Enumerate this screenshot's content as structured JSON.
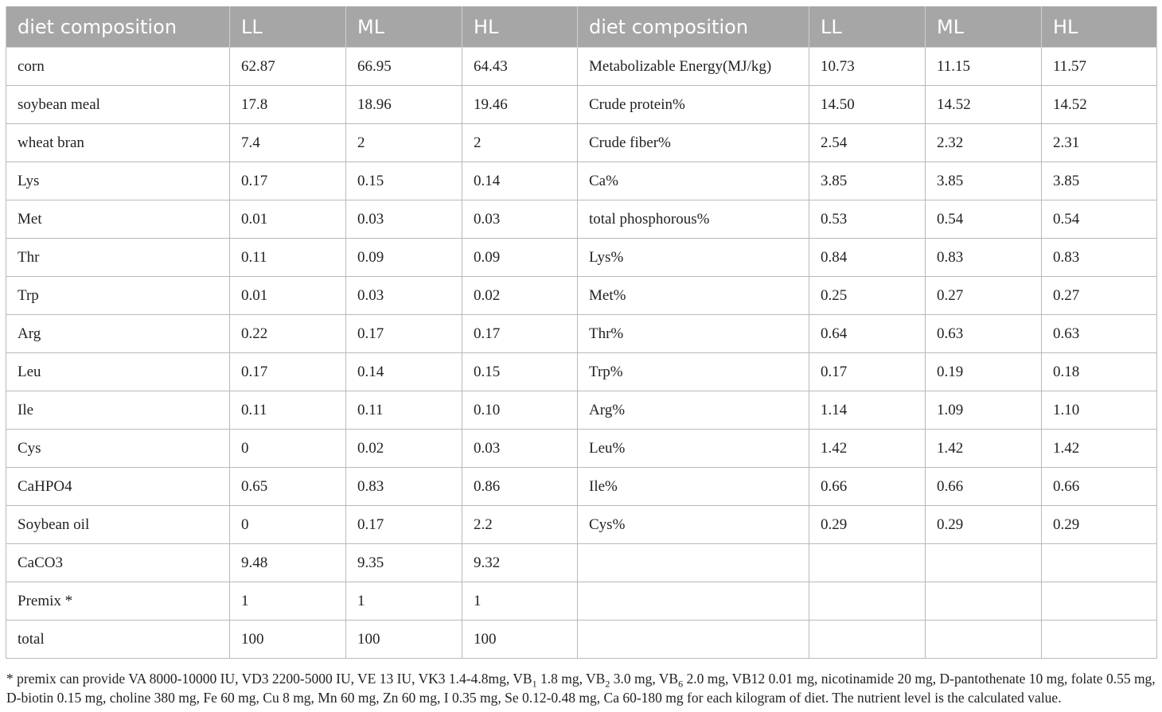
{
  "table": {
    "headers": [
      "diet composition",
      "LL",
      "ML",
      "HL",
      "diet composition",
      "LL",
      "ML",
      "HL"
    ],
    "rows": [
      [
        "corn",
        "62.87",
        "66.95",
        "64.43",
        "Metabolizable Energy(MJ/kg)",
        "10.73",
        "11.15",
        "11.57"
      ],
      [
        "soybean meal",
        "17.8",
        "18.96",
        "19.46",
        "Crude protein%",
        "14.50",
        "14.52",
        "14.52"
      ],
      [
        "wheat bran",
        "7.4",
        "2",
        "2",
        "Crude fiber%",
        "2.54",
        "2.32",
        "2.31"
      ],
      [
        "Lys",
        "0.17",
        "0.15",
        "0.14",
        "Ca%",
        "3.85",
        "3.85",
        "3.85"
      ],
      [
        "Met",
        "0.01",
        "0.03",
        "0.03",
        "total phosphorous%",
        "0.53",
        "0.54",
        "0.54"
      ],
      [
        "Thr",
        "0.11",
        "0.09",
        "0.09",
        "Lys%",
        "0.84",
        "0.83",
        "0.83"
      ],
      [
        "Trp",
        "0.01",
        "0.03",
        "0.02",
        "Met%",
        "0.25",
        "0.27",
        "0.27"
      ],
      [
        "Arg",
        "0.22",
        "0.17",
        "0.17",
        "Thr%",
        "0.64",
        "0.63",
        "0.63"
      ],
      [
        "Leu",
        "0.17",
        "0.14",
        "0.15",
        "Trp%",
        "0.17",
        "0.19",
        "0.18"
      ],
      [
        "Ile",
        "0.11",
        "0.11",
        "0.10",
        "Arg%",
        "1.14",
        "1.09",
        "1.10"
      ],
      [
        "Cys",
        "0",
        "0.02",
        "0.03",
        "Leu%",
        "1.42",
        "1.42",
        "1.42"
      ],
      [
        "CaHPO4",
        "0.65",
        "0.83",
        "0.86",
        "Ile%",
        "0.66",
        "0.66",
        "0.66"
      ],
      [
        "Soybean oil",
        "0",
        "0.17",
        "2.2",
        "Cys%",
        "0.29",
        "0.29",
        "0.29"
      ],
      [
        "CaCO3",
        "9.48",
        "9.35",
        "9.32",
        "",
        "",
        "",
        ""
      ],
      [
        "Premix *",
        "1",
        "1",
        "1",
        "",
        "",
        "",
        ""
      ],
      [
        "total",
        "100",
        "100",
        "100",
        "",
        "",
        "",
        ""
      ]
    ]
  },
  "footnote": {
    "parts": [
      "* premix can provide VA 8000-10000 IU, VD3 2200-5000 IU, VE 13 IU, VK3 1.4-4.8mg, VB",
      "1",
      " 1.8 mg, VB",
      "2",
      " 3.0 mg, VB",
      "6",
      " 2.0 mg, VB12 0.01 mg, nicotinamide 20 mg, D-pantothenate 10 mg, folate 0.55 mg, D-biotin 0.15 mg, choline 380 mg, Fe 60 mg, Cu 8 mg, Mn 60 mg, Zn 60 mg, I 0.35 mg, Se 0.12-0.48 mg, Ca 60-180 mg for each kilogram of diet. The nutrient level is the calculated value."
    ]
  }
}
